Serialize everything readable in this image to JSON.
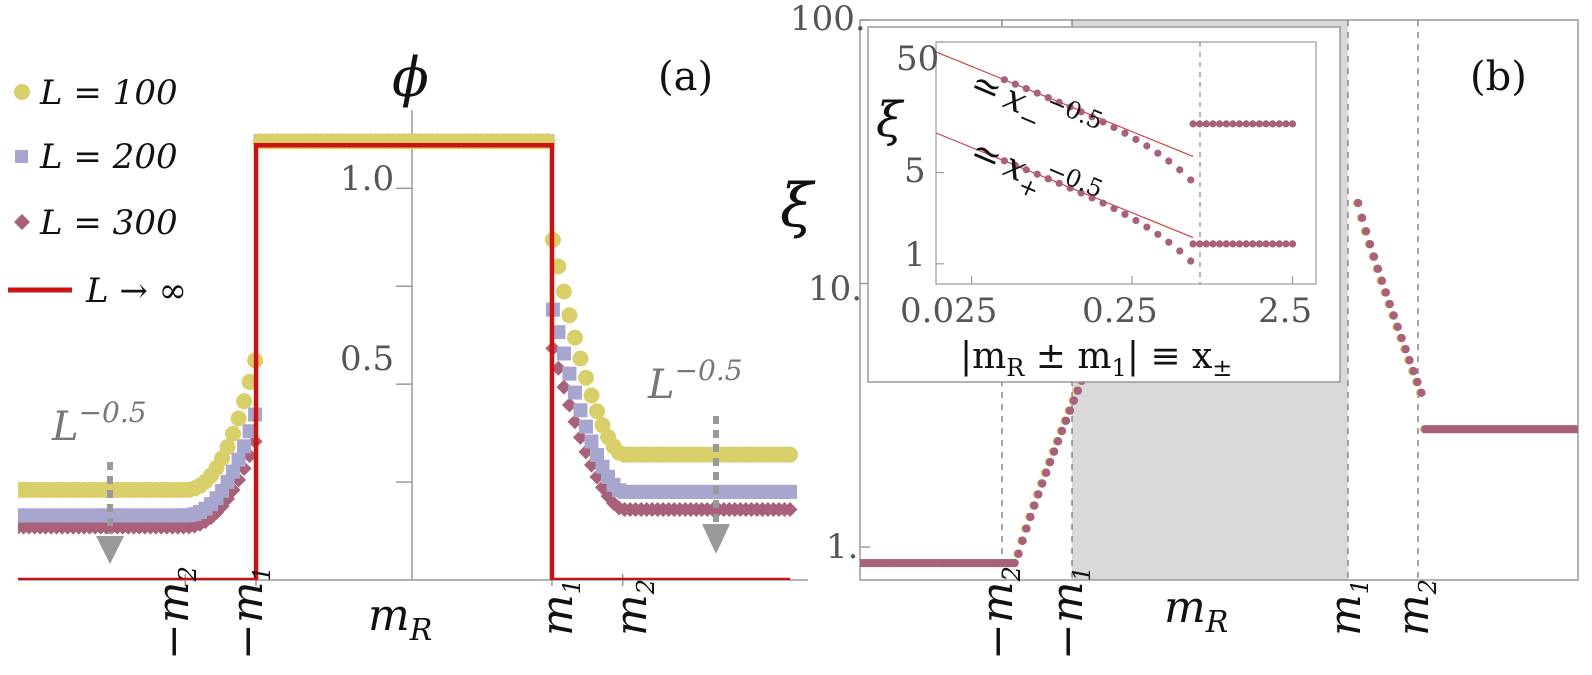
{
  "colors": {
    "L100": "#d9cf6a",
    "L200": "#a7a6cf",
    "L300": "#a9607a",
    "Linf": "#cc1111",
    "guide_line": "#888888",
    "shade": "#d9d9d9",
    "fit_line": "#cc4444",
    "arrow": "#999999"
  },
  "panel_a": {
    "label": "(a)",
    "ylabel": "ϕ",
    "xlabel": "m",
    "xlabel_sub": "R",
    "ytick_labels": [
      "0.5",
      "1.0"
    ],
    "xtick_labels": [
      {
        "base": "−m",
        "sub": "2"
      },
      {
        "base": "−m",
        "sub": "1"
      },
      {
        "base": "m",
        "sub": "1"
      },
      {
        "base": "m",
        "sub": "2"
      }
    ],
    "annotation_left": {
      "base": "L",
      "sup": "−0.5"
    },
    "annotation_right": {
      "base": "L",
      "sup": "−0.5"
    },
    "legend": [
      {
        "marker": "circle",
        "label": "L = 100",
        "series": "L100"
      },
      {
        "marker": "square",
        "label": "L = 200",
        "series": "L200"
      },
      {
        "marker": "diamond",
        "label": "L = 300",
        "series": "L300"
      },
      {
        "marker": "line",
        "label": "L → ∞",
        "series": "Linf"
      }
    ]
  },
  "panel_b": {
    "label": "(b)",
    "ylabel": "ξ",
    "xlabel": "m",
    "xlabel_sub": "R",
    "ytick_labels": [
      "1.",
      "10.",
      "100."
    ],
    "xtick_labels": [
      {
        "base": "−m",
        "sub": "2"
      },
      {
        "base": "−m",
        "sub": "1"
      },
      {
        "base": "m",
        "sub": "1"
      },
      {
        "base": "m",
        "sub": "2"
      }
    ],
    "inset": {
      "ylabel": "ξ",
      "xlabel": "|m",
      "xlabel_sub": "R",
      "xlabel_rest": " ± m",
      "xlabel_sub2": "1",
      "xlabel_tail": "| ≡ x",
      "xlabel_sub3": "±",
      "ytick_labels": [
        "1",
        "5",
        "50"
      ],
      "xtick_labels": [
        "0.025",
        "0.25",
        "2.5"
      ],
      "fit_minus": {
        "approx": "≃",
        "base": "x",
        "sub": "−",
        "sup": "−0.5"
      },
      "fit_plus": {
        "approx": "≃",
        "base": "x",
        "sub": "+",
        "sup": "−0.5"
      }
    }
  },
  "chart_data": [
    {
      "type": "scatter",
      "title": "(a)",
      "xlabel": "m_R",
      "ylabel": "ϕ",
      "xlim": [
        -3,
        3
      ],
      "ylim": [
        0,
        1.2
      ],
      "x_marks": {
        "-m2": -1.7,
        "-m1": -1.15,
        "m1": 1.15,
        "m2": 1.7
      },
      "yticks": [
        0.25,
        0.5,
        0.75,
        1.0
      ],
      "series": [
        {
          "name": "L = 100",
          "marker": "circle",
          "plateau_outer": 0.23,
          "inner_edge_left": 0.57,
          "inner_edge_right": 0.88,
          "right_plateau": 0.32,
          "center": 1.12
        },
        {
          "name": "L = 200",
          "marker": "square",
          "plateau_outer": 0.165,
          "inner_edge_left": 0.43,
          "inner_edge_right": 0.7,
          "right_plateau": 0.225,
          "center": 1.12
        },
        {
          "name": "L = 300",
          "marker": "diamond",
          "plateau_outer": 0.135,
          "inner_edge_left": 0.36,
          "inner_edge_right": 0.6,
          "right_plateau": 0.18,
          "center": 1.12
        },
        {
          "name": "L → ∞",
          "marker": "line",
          "outside_value": 0.0,
          "center": 1.11,
          "jump_at": [
            -1.15,
            1.15
          ]
        }
      ]
    },
    {
      "type": "scatter",
      "title": "(b)",
      "xlabel": "m_R",
      "ylabel": "ξ",
      "yscale": "log",
      "ylim": [
        0.75,
        100
      ],
      "xlim": [
        -3,
        3
      ],
      "yticks": [
        1,
        10,
        100
      ],
      "x_marks": {
        "-m2": -1.7,
        "-m1": -1.15,
        "m1": 1.15,
        "m2": 1.7
      },
      "shaded_region": [
        -1.15,
        1.15
      ],
      "series": [
        {
          "name": "L = 100",
          "left_plateau": 0.87,
          "left_peak": 4.3,
          "right_peak": 21,
          "right_end": 3.7,
          "right_plateau": 2.8
        },
        {
          "name": "L = 300",
          "left_plateau": 0.87,
          "left_peak": 4.3,
          "right_peak": 21,
          "right_end": 3.7,
          "right_plateau": 2.8
        }
      ],
      "inset": {
        "type": "scatter",
        "xscale": "log",
        "yscale": "log",
        "xlabel": "|m_R ± m_1| ≡ x_±",
        "ylabel": "ξ",
        "xlim": [
          0.015,
          3.5
        ],
        "ylim": [
          0.7,
          50
        ],
        "xticks": [
          0.025,
          0.25,
          2.5
        ],
        "yticks": [
          1,
          5,
          50
        ],
        "vline_x": 0.6,
        "fits": [
          {
            "name": "≃ x_−^−0.5",
            "exponent": -0.5,
            "value_at_0.05": 23
          },
          {
            "name": "≃ x_+^−0.5",
            "exponent": -0.5,
            "value_at_0.05": 5.5
          }
        ],
        "plateaus": [
          {
            "name": "upper",
            "value": 11.8,
            "x_range": [
              0.6,
              2.5
            ]
          },
          {
            "name": "lower",
            "value": 1.42,
            "x_range": [
              0.6,
              2.5
            ]
          }
        ]
      }
    }
  ]
}
